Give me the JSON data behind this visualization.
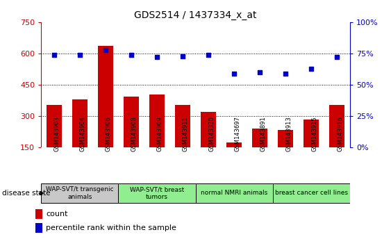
{
  "title": "GDS2514 / 1437334_x_at",
  "samples": [
    "GSM143903",
    "GSM143904",
    "GSM143906",
    "GSM143908",
    "GSM143909",
    "GSM143911",
    "GSM143330",
    "GSM143697",
    "GSM143891",
    "GSM143913",
    "GSM143915",
    "GSM143916"
  ],
  "counts": [
    355,
    380,
    635,
    395,
    405,
    355,
    320,
    175,
    240,
    235,
    285,
    355
  ],
  "percentiles": [
    74,
    74,
    78,
    74,
    72,
    73,
    74,
    59,
    60,
    59,
    63,
    72
  ],
  "bar_color": "#CC0000",
  "dot_color": "#0000CC",
  "ylim_left": [
    150,
    750
  ],
  "ylim_right": [
    0,
    100
  ],
  "yticks_left": [
    150,
    300,
    450,
    600,
    750
  ],
  "yticks_right": [
    0,
    25,
    50,
    75,
    100
  ],
  "grid_values": [
    300,
    450,
    600
  ],
  "groups_def": [
    {
      "label": "WAP-SVT/t transgenic\nanimals",
      "indices": [
        0,
        1,
        2
      ],
      "color": "#C8C8C8"
    },
    {
      "label": "WAP-SVT/t breast\ntumors",
      "indices": [
        3,
        4,
        5
      ],
      "color": "#90EE90"
    },
    {
      "label": "normal NMRI animals",
      "indices": [
        6,
        7,
        8
      ],
      "color": "#90EE90"
    },
    {
      "label": "breast cancer cell lines",
      "indices": [
        9,
        10,
        11
      ],
      "color": "#90EE90"
    }
  ],
  "legend_count_label": "count",
  "legend_percentile_label": "percentile rank within the sample",
  "disease_state_label": "disease state",
  "background_color": "#ffffff",
  "tick_area_color": "#C8C8C8"
}
